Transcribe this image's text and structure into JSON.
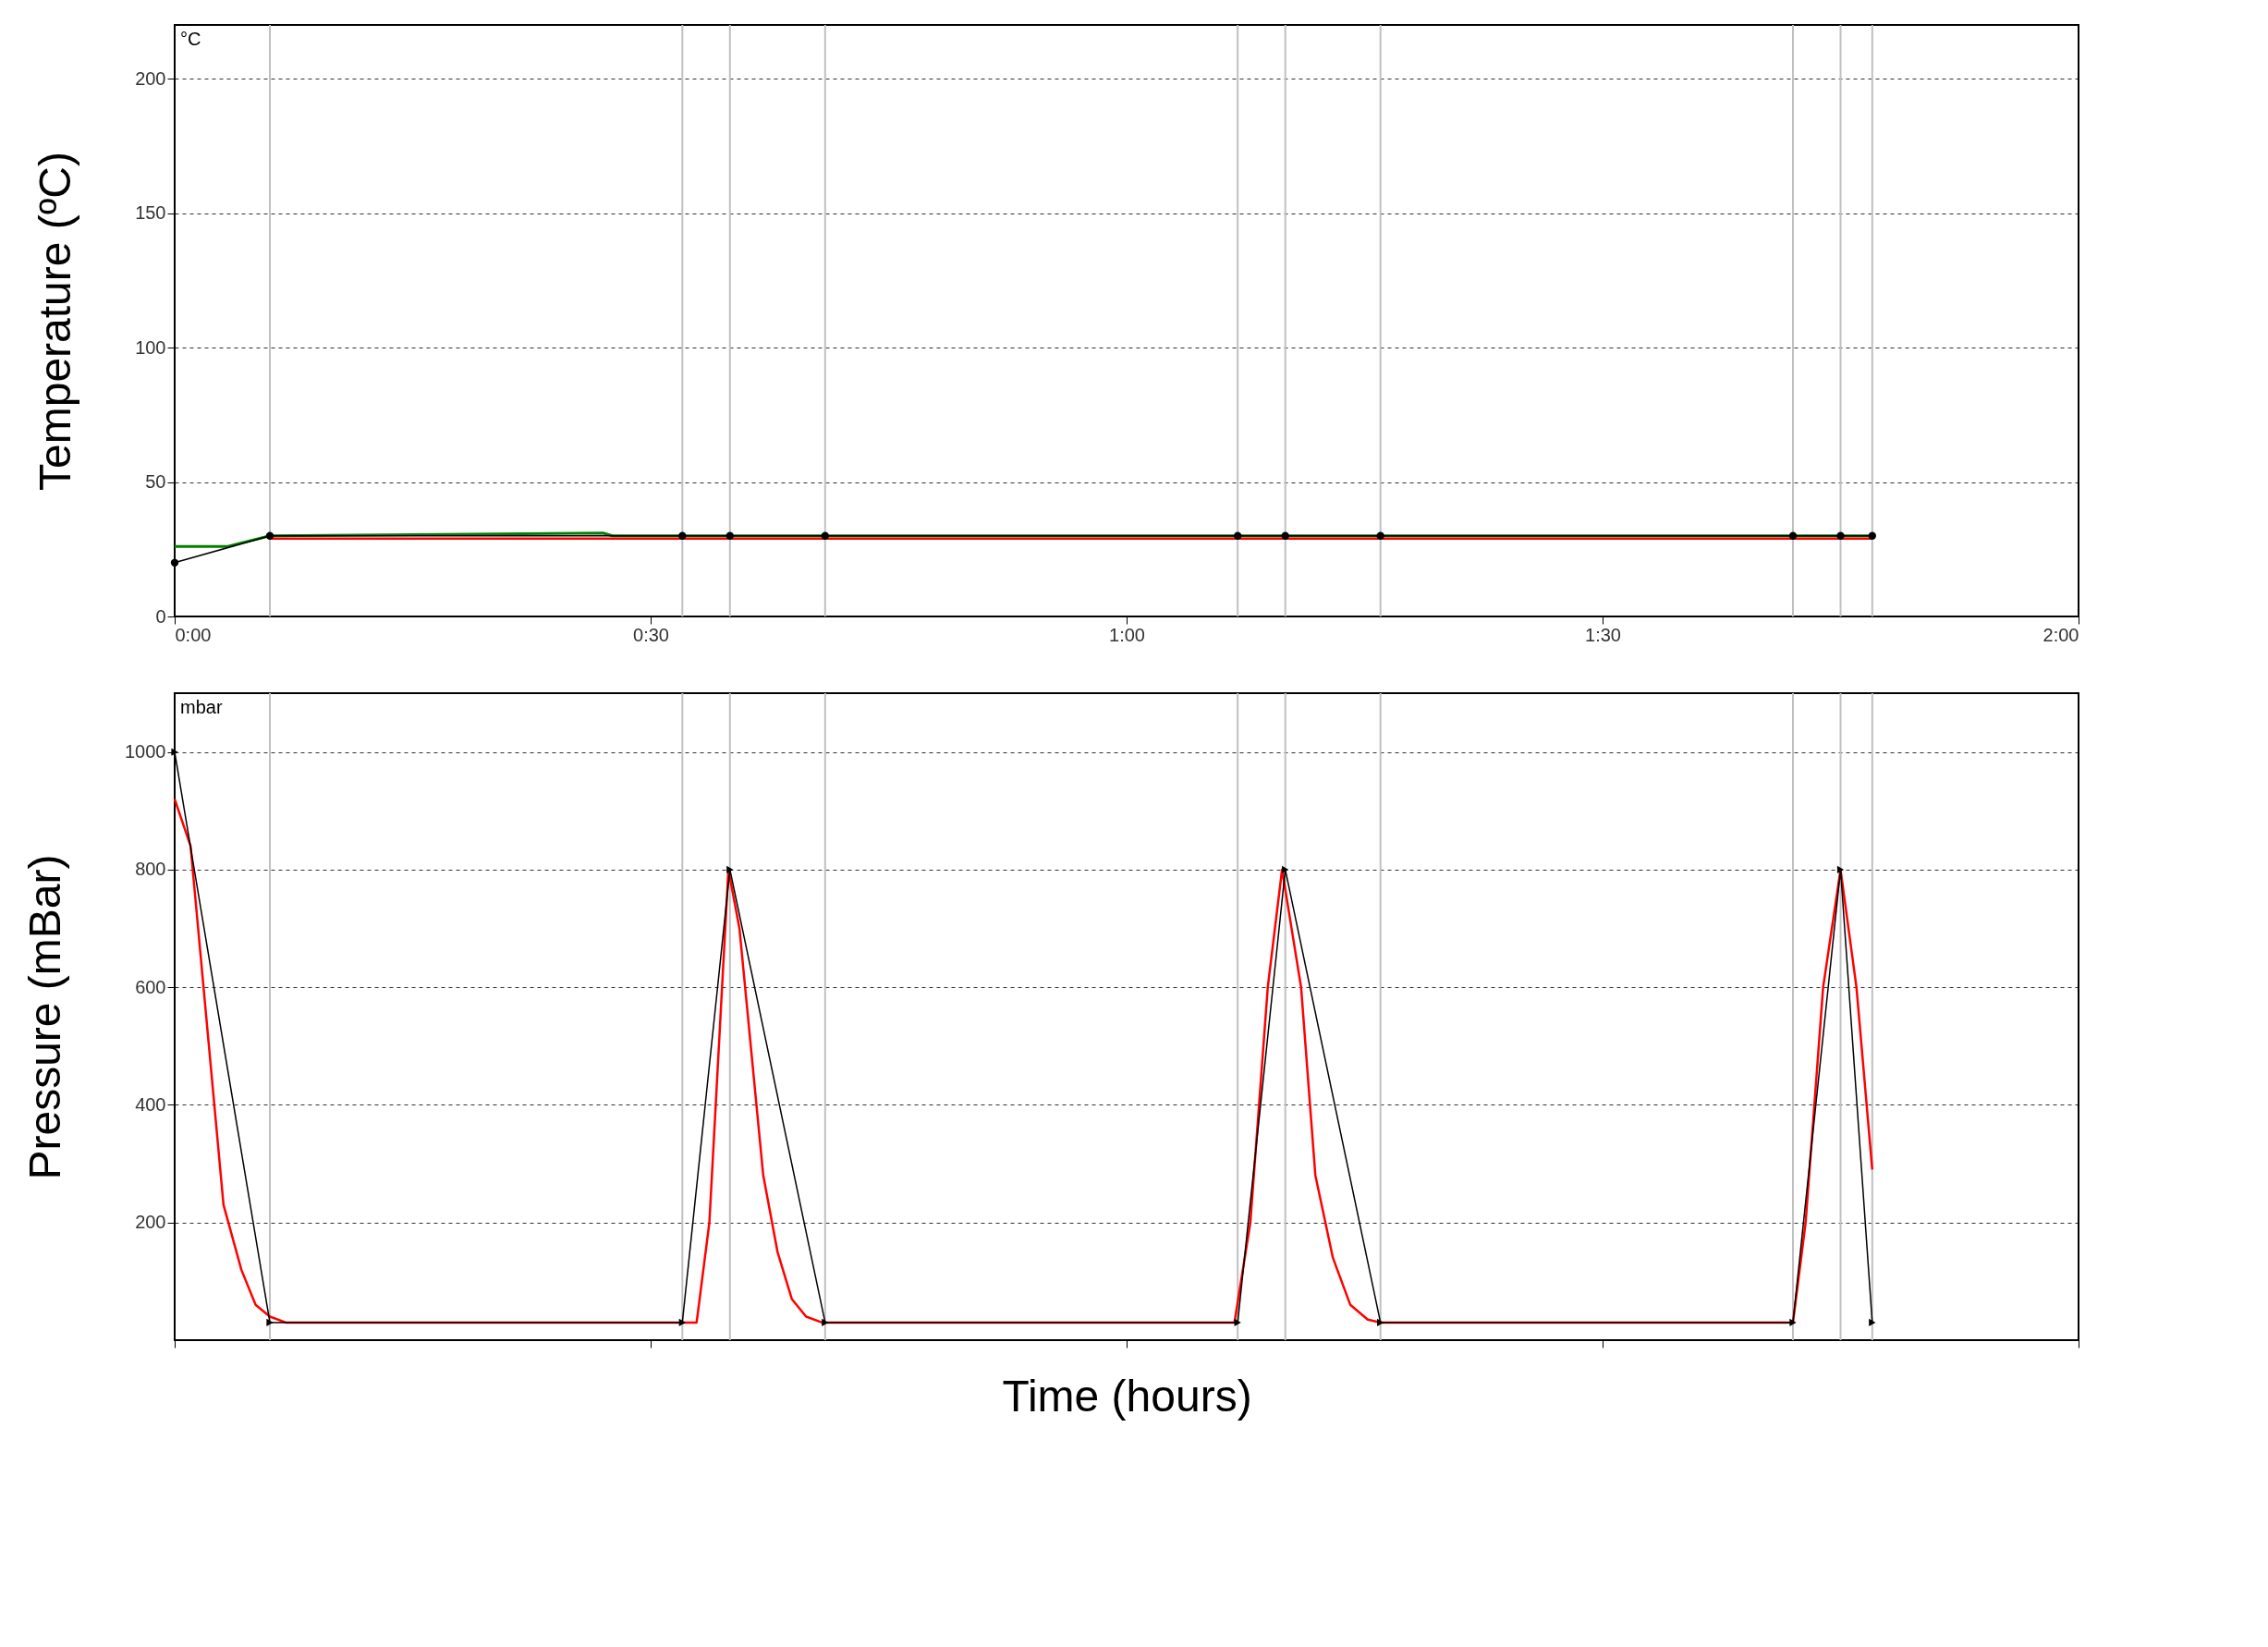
{
  "chart_data": [
    {
      "type": "line",
      "ylabel": "Temperature (ºC)",
      "annotations": [
        "°C"
      ],
      "xlim": [
        0,
        2
      ],
      "xticks": [
        {
          "value": 0,
          "label": "0:00"
        },
        {
          "value": 0.5,
          "label": "0:30"
        },
        {
          "value": 1,
          "label": "1:00"
        },
        {
          "value": 1.5,
          "label": "1:30"
        },
        {
          "value": 2,
          "label": "2:00"
        }
      ],
      "ylim": [
        0,
        220
      ],
      "yticks": [
        0,
        50,
        100,
        150,
        200
      ],
      "grid": "y",
      "ref_lines": [
        {
          "axis": "x",
          "value": 0.1,
          "color": "#c0c0c0"
        },
        {
          "axis": "x",
          "value": 0.5333,
          "color": "#c0c0c0"
        },
        {
          "axis": "x",
          "value": 0.5833,
          "color": "#c0c0c0"
        },
        {
          "axis": "x",
          "value": 0.6833,
          "color": "#c0c0c0"
        },
        {
          "axis": "x",
          "value": 1.1167,
          "color": "#c0c0c0"
        },
        {
          "axis": "x",
          "value": 1.1667,
          "color": "#c0c0c0"
        },
        {
          "axis": "x",
          "value": 1.2667,
          "color": "#c0c0c0"
        },
        {
          "axis": "x",
          "value": 1.7,
          "color": "#c0c0c0"
        },
        {
          "axis": "x",
          "value": 1.75,
          "color": "#c0c0c0"
        },
        {
          "axis": "x",
          "value": 1.7833,
          "color": "#c0c0c0"
        }
      ],
      "series": [
        {
          "color": "#000000",
          "marker": "circle",
          "x": [
            0,
            0.1,
            0.5333,
            0.5833,
            0.6833,
            1.1167,
            1.1667,
            1.2667,
            1.7,
            1.75,
            1.7833
          ],
          "values": [
            20,
            30,
            30,
            30,
            30,
            30,
            30,
            30,
            30,
            30,
            30
          ]
        },
        {
          "color": "#ff0000",
          "x": [
            0.1,
            0.45,
            0.6,
            0.68,
            0.75,
            1.0,
            1.3,
            1.7833
          ],
          "values": [
            29,
            29,
            29,
            29,
            29,
            29,
            29,
            29
          ]
        },
        {
          "color": "#008000",
          "x": [
            0,
            0.055,
            0.1,
            0.45,
            0.46,
            1.7833
          ],
          "values": [
            26,
            26,
            30,
            31,
            30,
            30
          ]
        }
      ]
    },
    {
      "type": "line",
      "ylabel": "Pressure (mBar)",
      "xlabel": "Time (hours)",
      "annotations": [
        "mbar"
      ],
      "xlim": [
        0,
        2
      ],
      "xticks": [
        0,
        0.5,
        1,
        1.5,
        2
      ],
      "ylim": [
        0,
        1100
      ],
      "yticks": [
        200,
        400,
        600,
        800,
        1000
      ],
      "grid": "y",
      "tick_labels": "y",
      "ref_lines": [
        {
          "axis": "x",
          "value": 0.1,
          "color": "#c0c0c0"
        },
        {
          "axis": "x",
          "value": 0.5333,
          "color": "#c0c0c0"
        },
        {
          "axis": "x",
          "value": 0.5833,
          "color": "#c0c0c0"
        },
        {
          "axis": "x",
          "value": 0.6833,
          "color": "#c0c0c0"
        },
        {
          "axis": "x",
          "value": 1.1167,
          "color": "#c0c0c0"
        },
        {
          "axis": "x",
          "value": 1.1667,
          "color": "#c0c0c0"
        },
        {
          "axis": "x",
          "value": 1.2667,
          "color": "#c0c0c0"
        },
        {
          "axis": "x",
          "value": 1.7,
          "color": "#c0c0c0"
        },
        {
          "axis": "x",
          "value": 1.75,
          "color": "#c0c0c0"
        },
        {
          "axis": "x",
          "value": 1.7833,
          "color": "#c0c0c0"
        }
      ],
      "series": [
        {
          "color": "#000000",
          "marker": "triangle",
          "x": [
            0,
            0.1,
            0.5333,
            0.5833,
            0.6833,
            1.1167,
            1.1667,
            1.2667,
            1.7,
            1.75,
            1.7833
          ],
          "values": [
            1000,
            30,
            30,
            800,
            30,
            30,
            800,
            30,
            30,
            800,
            30
          ]
        },
        {
          "color": "#ff0000",
          "x": [
            0,
            0.0167,
            0.0513,
            0.07,
            0.085,
            0.1,
            0.1167,
            0.5483,
            0.5617,
            0.5817,
            0.5933,
            0.6183,
            0.6333,
            0.6483,
            0.6633,
            0.68,
            1.1133,
            1.13,
            1.1483,
            1.1633,
            1.1833,
            1.1983,
            1.2167,
            1.235,
            1.2533,
            1.2667,
            1.7,
            1.7133,
            1.7317,
            1.75,
            1.7667,
            1.7833
          ],
          "values": [
            920,
            840,
            230,
            120,
            60,
            40,
            30,
            30,
            200,
            800,
            700,
            280,
            150,
            70,
            40,
            30,
            30,
            200,
            600,
            800,
            600,
            280,
            140,
            60,
            35,
            30,
            30,
            200,
            600,
            800,
            600,
            290
          ]
        }
      ]
    }
  ]
}
